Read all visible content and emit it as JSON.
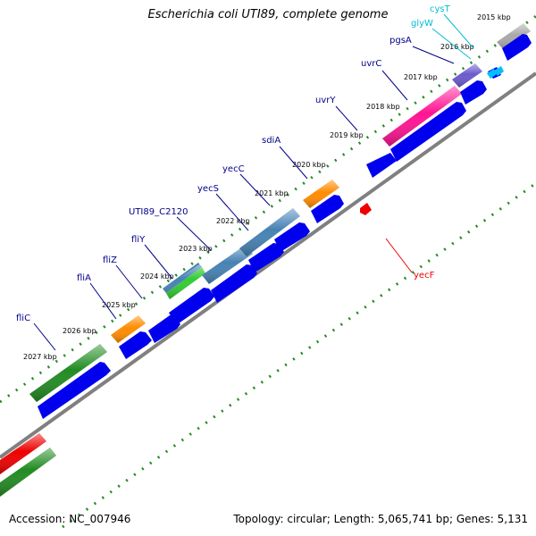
{
  "title": "Escherichia coli UTI89, complete genome",
  "footer": {
    "accession": "Accession: NC_007946",
    "summary": "Topology: circular; Length: 5,065,741 bp; Genes: 5,131"
  },
  "colors": {
    "backbone": "#808080",
    "cds": "#0000ee",
    "tick_dots": "#228b22",
    "gene_label": "#00008b",
    "trna_label": "#00bcd4",
    "reverse_label": "#ee0000"
  },
  "kbp_ticks": [
    {
      "label": "2015 kbp"
    },
    {
      "label": "2016 kbp"
    },
    {
      "label": "2017 kbp"
    },
    {
      "label": "2018 kbp"
    },
    {
      "label": "2019 kbp"
    },
    {
      "label": "2020 kbp"
    },
    {
      "label": "2021 kbp"
    },
    {
      "label": "2022 kbp"
    },
    {
      "label": "2023 kbp"
    },
    {
      "label": "2024 kbp"
    },
    {
      "label": "2025 kbp"
    },
    {
      "label": "2026 kbp"
    },
    {
      "label": "2027 kbp"
    }
  ],
  "gene_labels": [
    {
      "label": "cysT",
      "kind": "trna"
    },
    {
      "label": "glyW",
      "kind": "trna"
    },
    {
      "label": "pgsA",
      "kind": "gene"
    },
    {
      "label": "uvrC",
      "kind": "gene"
    },
    {
      "label": "uvrY",
      "kind": "gene"
    },
    {
      "label": "sdiA",
      "kind": "gene"
    },
    {
      "label": "yecC",
      "kind": "gene"
    },
    {
      "label": "yecS",
      "kind": "gene"
    },
    {
      "label": "UTI89_C2120",
      "kind": "gene"
    },
    {
      "label": "fliY",
      "kind": "gene"
    },
    {
      "label": "fliZ",
      "kind": "gene"
    },
    {
      "label": "fliA",
      "kind": "gene"
    },
    {
      "label": "fliC",
      "kind": "gene"
    },
    {
      "label": "yecF",
      "kind": "reverse"
    }
  ],
  "genes": [
    {
      "name": "fliC",
      "color": "#228b22"
    },
    {
      "name": "fliA",
      "color": "#ff8c00"
    },
    {
      "name": "fliZ",
      "color": "#ff8c00"
    },
    {
      "name": "fliY",
      "color": "#33cc33"
    },
    {
      "name": "UTI89_C2120",
      "color": "#4682b4"
    },
    {
      "name": "yecS",
      "color": "#4682b4"
    },
    {
      "name": "yecC",
      "color": "#4682b4"
    },
    {
      "name": "sdiA",
      "color": "#ff8c00"
    },
    {
      "name": "uvrC",
      "color": "#ff1493"
    },
    {
      "name": "pgsA",
      "color": "#6a5acd"
    },
    {
      "name": "cysT",
      "color": "#a9a9a9"
    },
    {
      "name": "partial-red",
      "color": "#ee0000"
    },
    {
      "name": "partial-green",
      "color": "#228b22"
    }
  ]
}
